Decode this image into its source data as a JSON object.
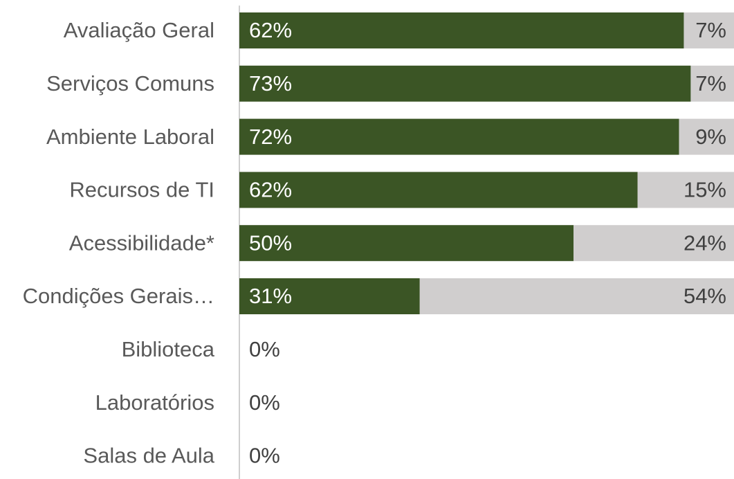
{
  "chart_data": {
    "type": "stacked_bar_100",
    "categories": [
      "Avaliação Geral",
      "Serviços Comuns",
      "Ambiente Laboral",
      "Recursos de TI",
      "Acessibilidade*",
      "Condições Gerais…",
      "Biblioteca",
      "Laboratórios",
      "Salas de Aula"
    ],
    "series": [
      {
        "color": "#3b5525",
        "label_color": "#ffffff",
        "values": [
          62,
          73,
          72,
          62,
          50,
          31,
          0,
          0,
          0
        ],
        "value_labels": [
          "62%",
          "73%",
          "72%",
          "62%",
          "50%",
          "31%",
          "0%",
          "0%",
          "0%"
        ]
      },
      {
        "color": "#d0cece",
        "label_color": "#404040",
        "values": [
          7,
          7,
          9,
          15,
          24,
          54,
          null,
          null,
          null
        ],
        "value_labels": [
          "7%",
          "7%",
          "9%",
          "15%",
          "24%",
          "54%",
          null,
          null,
          null
        ]
      }
    ]
  }
}
